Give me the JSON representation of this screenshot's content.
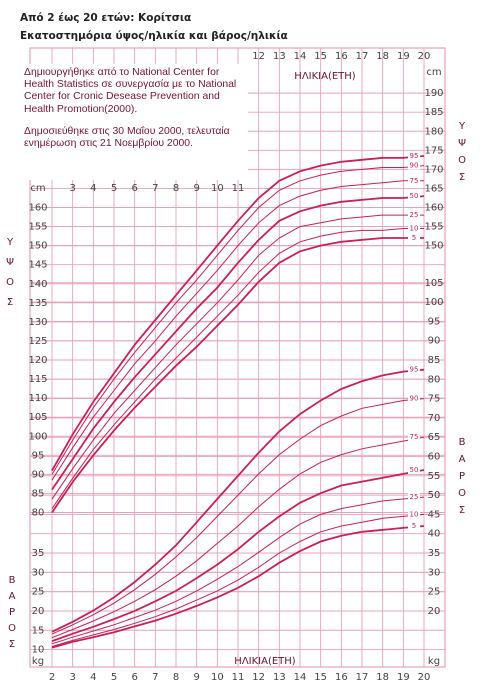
{
  "title": "Από 2 έως 20 ετών: Κορίτσια",
  "subtitle": "Εκατοστημόρια ύψος/ηλικία και βάρος/ηλικία",
  "note": [
    "Δημιουργήθηκε από το National Center for Health Statistics σε συνεργασία με το National Center for Cronic Desease Prevention and Health Promotion(2000).",
    "Δημοσιεύθηκε στις 30 Μαΐου 2000, τελευταία ενημέρωση στις 21 Νοεμβρίου 2000."
  ],
  "chart_data": {
    "type": "line",
    "xlabel": "ΗΛΙΚΙΑ(ΕΤΗ)",
    "ylabel": "ΥΨΟΣ",
    "y2label": "ΒΑΡΟΣ",
    "yunit": "cm",
    "y2unit": "kg",
    "x": [
      2,
      3,
      4,
      5,
      6,
      7,
      8,
      9,
      10,
      11,
      12,
      13,
      14,
      15,
      16,
      17,
      18,
      19,
      20
    ],
    "xlim": [
      2,
      20
    ],
    "xticks": [
      2,
      3,
      4,
      5,
      6,
      7,
      8,
      9,
      10,
      11,
      12,
      13,
      14,
      15,
      16,
      17,
      18,
      19,
      20
    ],
    "xticks_top": [
      12,
      13,
      14,
      15,
      16,
      17,
      18,
      19,
      20
    ],
    "xticks_inner": [
      3,
      4,
      5,
      6,
      7,
      8,
      9,
      10,
      11
    ],
    "ylim": [
      40,
      200
    ],
    "yticks": [
      80,
      85,
      90,
      95,
      100,
      105,
      110,
      115,
      120,
      125,
      130,
      135,
      140,
      145,
      150,
      155,
      160
    ],
    "yticks_right": [
      150,
      155,
      160,
      165,
      170,
      175,
      180,
      185,
      190
    ],
    "y2lim": [
      6,
      164
    ],
    "y2ticks": [
      10,
      15,
      20,
      25,
      30,
      35
    ],
    "y2ticks_right": [
      20,
      25,
      30,
      35,
      40,
      45,
      50,
      55,
      60,
      65,
      70,
      75,
      80,
      85,
      90,
      95,
      100,
      105
    ],
    "grid": true,
    "grid_color": "#eaa0b8",
    "series": [
      {
        "name": "95",
        "color": "#cc1f55",
        "values": [
          91,
          100.5,
          109,
          116.5,
          124,
          130.5,
          137,
          143.5,
          150,
          156.5,
          162.5,
          167,
          169.5,
          171,
          172,
          172.5,
          173,
          173,
          173.5
        ]
      },
      {
        "name": "90",
        "color": "#cc1f55",
        "values": [
          90,
          99,
          107.5,
          115,
          122,
          128.5,
          135,
          141,
          147.5,
          154,
          160,
          164.5,
          167,
          168.5,
          169.5,
          170,
          170.5,
          170.5,
          171
        ]
      },
      {
        "name": "75",
        "color": "#cc1f55",
        "values": [
          88.5,
          97,
          105,
          112,
          119,
          125,
          131.5,
          137.5,
          143.5,
          150,
          156,
          160.5,
          163,
          164.5,
          165.5,
          166,
          166.5,
          167,
          167
        ]
      },
      {
        "name": "50",
        "color": "#cc1f55",
        "values": [
          86,
          94,
          102,
          109,
          115.5,
          121.5,
          127.5,
          133.5,
          139,
          145.5,
          151.5,
          156.5,
          159,
          160.5,
          161.5,
          162,
          162.5,
          162.5,
          163
        ]
      },
      {
        "name": "25",
        "color": "#cc1f55",
        "values": [
          83.5,
          91.5,
          99,
          106,
          112,
          118,
          124,
          129.5,
          135,
          141,
          147.5,
          152,
          155,
          156,
          157,
          157.5,
          158,
          158,
          158
        ]
      },
      {
        "name": "10",
        "color": "#cc1f55",
        "values": [
          81,
          89,
          96.5,
          103,
          109,
          115,
          120.5,
          126,
          131.5,
          137,
          143,
          148,
          151,
          152.5,
          153.5,
          154,
          154,
          154.5,
          154.5
        ]
      },
      {
        "name": "5",
        "color": "#cc1f55",
        "values": [
          80,
          88,
          95,
          101.5,
          107.5,
          113,
          118.5,
          123.5,
          129,
          134.5,
          140.5,
          145.5,
          148.5,
          150,
          151,
          151.5,
          152,
          152,
          152
        ]
      },
      {
        "name": "95",
        "color": "#cc1f55",
        "axis": "y2",
        "values": [
          14.6,
          17.2,
          20.1,
          23.5,
          27.5,
          32,
          37,
          43,
          49,
          55,
          61,
          66.5,
          71,
          74.5,
          77.5,
          79.5,
          81,
          82,
          82.5
        ]
      },
      {
        "name": "90",
        "color": "#cc1f55",
        "axis": "y2",
        "values": [
          14,
          16.4,
          19,
          22,
          25.5,
          29.5,
          34,
          39,
          44.5,
          50,
          55.5,
          60.5,
          64.5,
          68,
          70.5,
          72.5,
          73.5,
          74.5,
          75
        ]
      },
      {
        "name": "75",
        "color": "#cc1f55",
        "axis": "y2",
        "values": [
          13.1,
          15.2,
          17.4,
          19.8,
          22.5,
          25.5,
          29,
          33,
          37.5,
          42,
          47,
          51.5,
          55.5,
          58.5,
          60.5,
          62,
          63,
          64,
          65
        ]
      },
      {
        "name": "50",
        "color": "#cc1f55",
        "axis": "y2",
        "values": [
          12.2,
          14.1,
          15.9,
          17.9,
          20,
          22.5,
          25.2,
          28.5,
          32,
          36,
          40.5,
          44.5,
          48,
          50.5,
          52.5,
          53.5,
          54.5,
          55.5,
          56.5
        ]
      },
      {
        "name": "25",
        "color": "#cc1f55",
        "axis": "y2",
        "values": [
          11.5,
          13.2,
          14.8,
          16.4,
          18.3,
          20.2,
          22.5,
          25.2,
          28.2,
          31.5,
          35.2,
          39,
          42.5,
          45,
          46.5,
          47.5,
          48.5,
          49,
          49.5
        ]
      },
      {
        "name": "10",
        "color": "#cc1f55",
        "axis": "y2",
        "values": [
          10.8,
          12.4,
          13.8,
          15.2,
          16.8,
          18.5,
          20.5,
          22.8,
          25.2,
          28,
          31.3,
          35,
          38,
          40.5,
          42,
          43,
          44,
          44.5,
          45
        ]
      },
      {
        "name": "5",
        "color": "#cc1f55",
        "axis": "y2",
        "values": [
          10.5,
          12,
          13.2,
          14.5,
          16,
          17.5,
          19.3,
          21.3,
          23.5,
          26,
          29,
          32.5,
          35.5,
          38,
          39.5,
          40.5,
          41,
          41.5,
          42
        ]
      }
    ]
  }
}
